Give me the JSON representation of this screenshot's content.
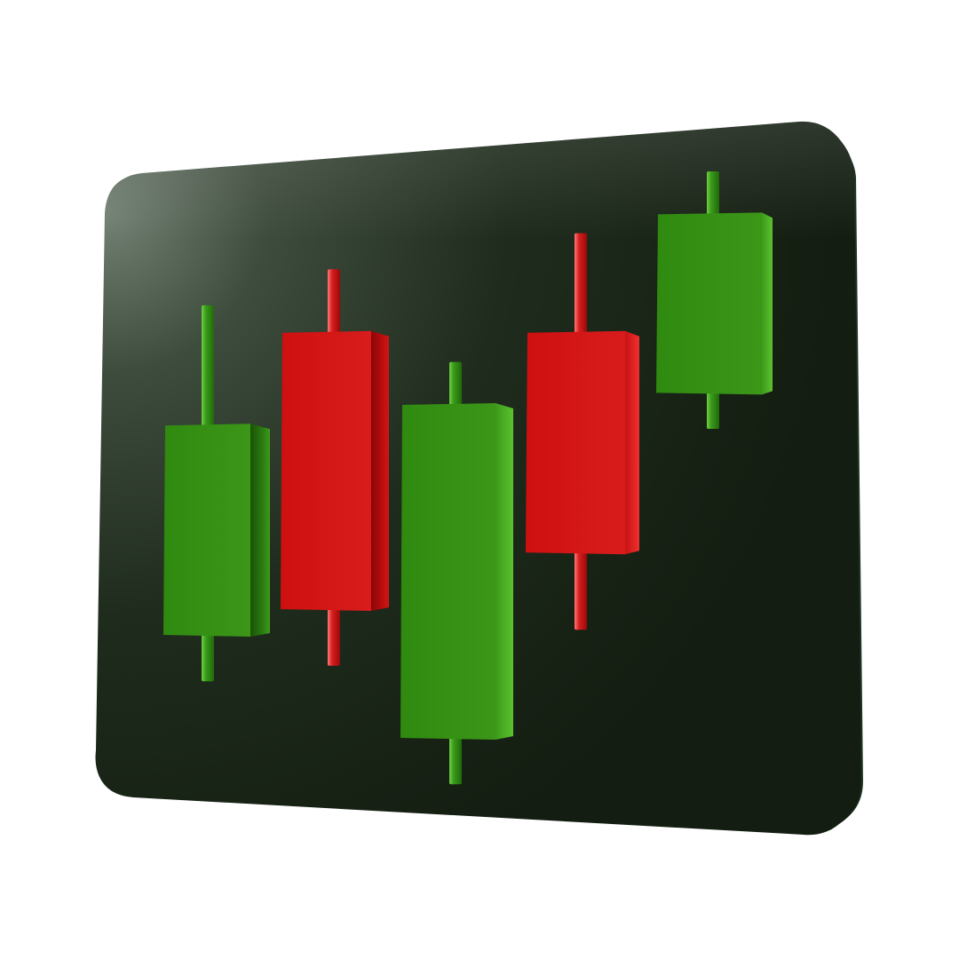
{
  "illustration": {
    "subject": "candlestick-chart-icon",
    "panel_color": "#1c2a1a",
    "panel_highlight_color": "#6f7d70",
    "bullish_color": "#35901a",
    "bearish_color": "#d41414"
  },
  "candles": [
    {
      "direction": "bullish",
      "open": 25,
      "close": 66,
      "high": 89,
      "low": 16
    },
    {
      "direction": "bearish",
      "open": 84,
      "close": 30,
      "high": 96,
      "low": 19
    },
    {
      "direction": "bullish",
      "open": 5,
      "close": 70,
      "high": 78,
      "low": -4
    },
    {
      "direction": "bearish",
      "open": 84,
      "close": 41,
      "high": 103,
      "low": 26
    },
    {
      "direction": "bullish",
      "open": 72,
      "close": 107,
      "high": 115,
      "low": 65
    }
  ]
}
